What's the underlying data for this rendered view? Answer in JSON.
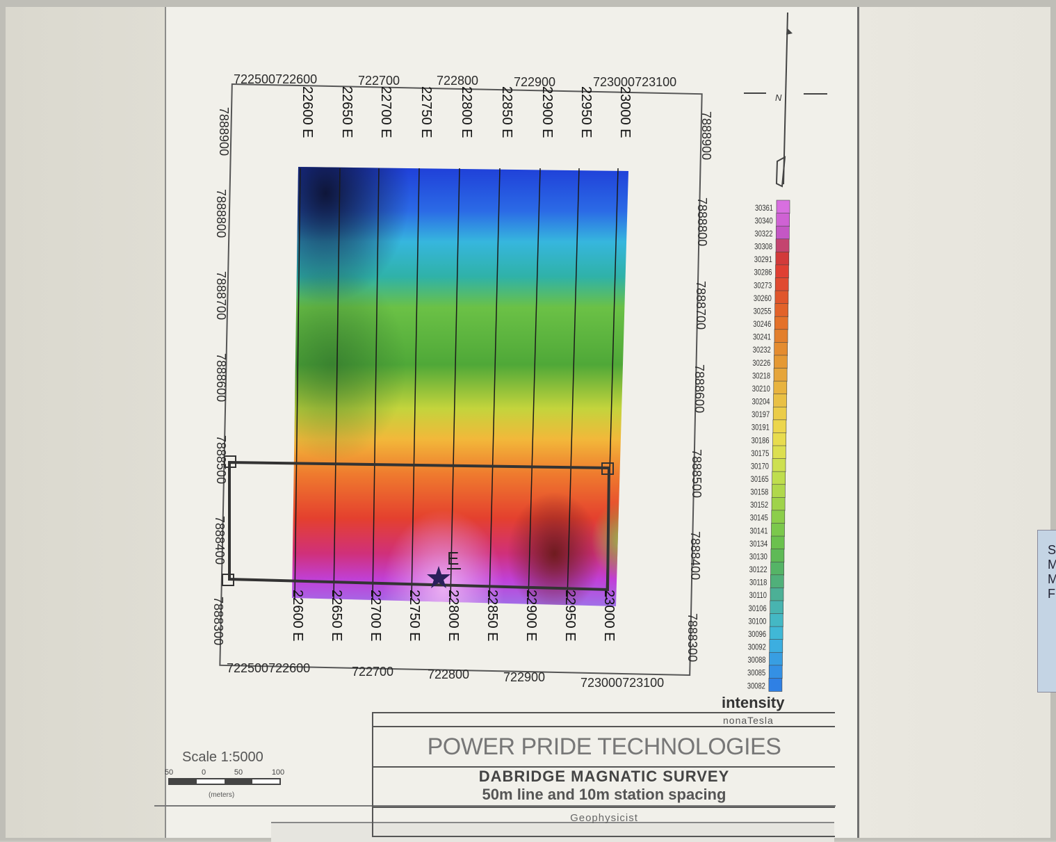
{
  "map": {
    "x_ticks_top": [
      "722500722600",
      "722700",
      "722800",
      "722900",
      "723000723100"
    ],
    "x_ticks_bottom": [
      "722500722600",
      "722700",
      "722800",
      "722900",
      "723000723100"
    ],
    "y_ticks_left": [
      "7888900",
      "7888800",
      "7888700",
      "7888600",
      "7888500",
      "7888400",
      "7888300"
    ],
    "y_ticks_right": [
      "7888900",
      "7888800",
      "7888700",
      "7888600",
      "7888500",
      "7888400",
      "7888300"
    ],
    "survey_lines_top": [
      "22600 E",
      "22650 E",
      "22700 E",
      "22750 E",
      "22800 E",
      "22850 E",
      "22900 E",
      "22950 E",
      "23000 E"
    ],
    "survey_lines_bottom": [
      "22600 E",
      "22650 E",
      "22700 E",
      "22750 E",
      "22800 E",
      "22850 E",
      "22900 E",
      "22950 E",
      "23000 E"
    ],
    "target_label": "E",
    "north_arrow_label": "N"
  },
  "legend": {
    "title": "intensity",
    "unit": "nonaTesla",
    "values": [
      "30361",
      "30340",
      "30322",
      "30308",
      "30291",
      "30286",
      "30273",
      "30260",
      "30255",
      "30246",
      "30241",
      "30232",
      "30226",
      "30218",
      "30210",
      "30204",
      "30197",
      "30191",
      "30186",
      "30175",
      "30170",
      "30165",
      "30158",
      "30152",
      "30145",
      "30141",
      "30134",
      "30130",
      "30122",
      "30118",
      "30110",
      "30106",
      "30100",
      "30096",
      "30092",
      "30088",
      "30085",
      "30082"
    ],
    "colors": [
      "#d86fe0",
      "#cf62d4",
      "#c457c4",
      "#c4446f",
      "#d23a3a",
      "#df3f33",
      "#e04a30",
      "#e0562c",
      "#e2632a",
      "#e4722a",
      "#e37f2c",
      "#e48c30",
      "#e59934",
      "#e6a53a",
      "#e8b33e",
      "#e9c044",
      "#ebcc48",
      "#ecd64c",
      "#e8dc4e",
      "#dcdf50",
      "#cde050",
      "#bfde4e",
      "#b0d84c",
      "#9fd34a",
      "#8cce4a",
      "#7bc84c",
      "#6bc14e",
      "#5fba56",
      "#55b466",
      "#50b07a",
      "#4cb096",
      "#48b4b0",
      "#44b8c4",
      "#40b8d6",
      "#3caee0",
      "#389ee2",
      "#3490e4",
      "#2f80e4"
    ]
  },
  "titleblock": {
    "company": "POWER PRIDE TECHNOLOGIES",
    "survey": "DABRIDGE MAGNATIC SURVEY",
    "spacing": "50m line and 10m station spacing",
    "role": "Geophysicist"
  },
  "scalebar": {
    "text": "Scale 1:5000",
    "ticks": [
      "50",
      "0",
      "50",
      "100"
    ],
    "units": "(meters)"
  },
  "side_panel": {
    "letters": "S M M F"
  }
}
